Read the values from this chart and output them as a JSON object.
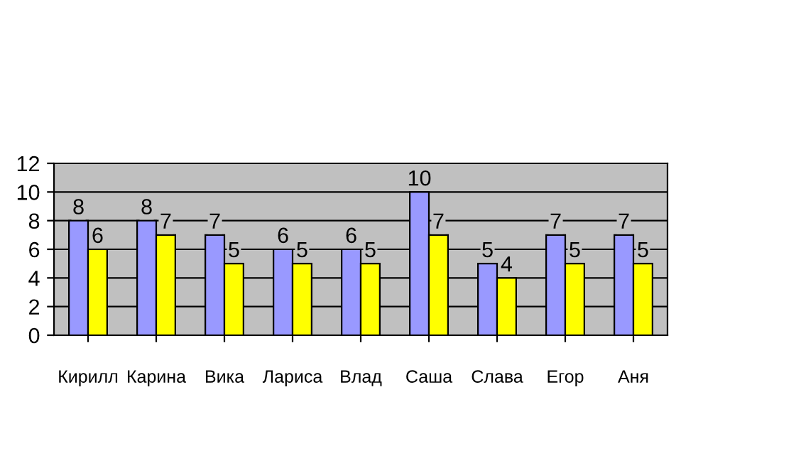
{
  "chart_data": {
    "type": "bar",
    "categories": [
      "Кирилл",
      "Карина",
      "Вика",
      "Лариса",
      "Влад",
      "Саша",
      "Слава",
      "Егор",
      "Аня"
    ],
    "series": [
      {
        "color": "#9999ff",
        "values": [
          8,
          8,
          7,
          6,
          6,
          10,
          5,
          7,
          7
        ]
      },
      {
        "color": "#ffff00",
        "values": [
          6,
          7,
          5,
          5,
          5,
          7,
          4,
          5,
          5
        ]
      }
    ],
    "ylim": [
      0,
      12
    ],
    "yticks": [
      0,
      2,
      4,
      6,
      8,
      10,
      12
    ],
    "grid": "y",
    "data_labels": true
  }
}
